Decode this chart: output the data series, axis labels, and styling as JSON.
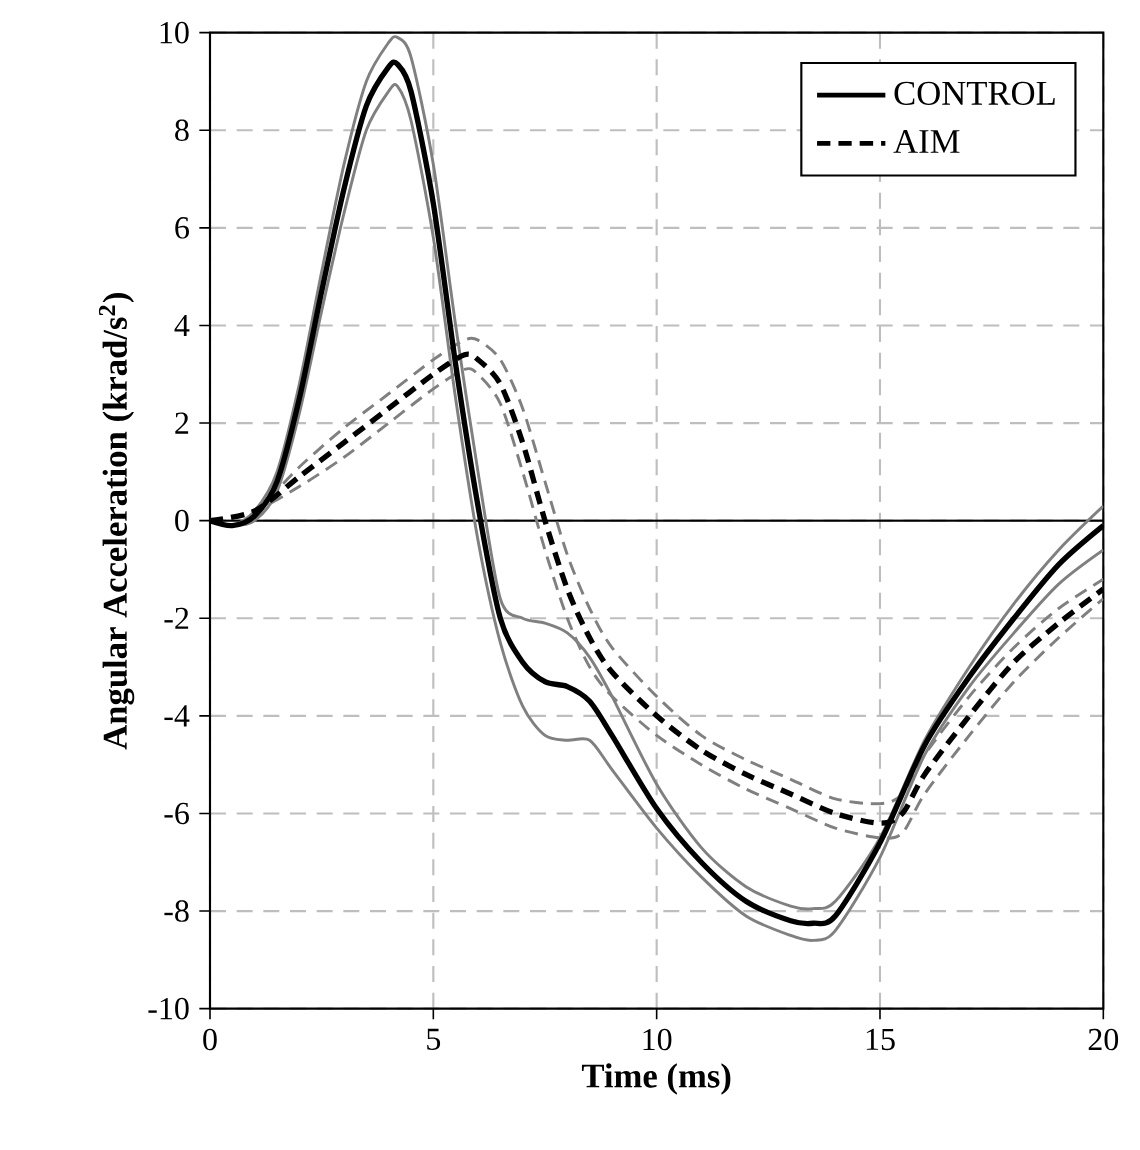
{
  "chart_data": {
    "type": "line",
    "xlabel": "Time (ms)",
    "ylabel": "Angular Acceleration (krad/s$^{2}$)",
    "xlim": [
      0,
      20
    ],
    "ylim": [
      -10,
      10
    ],
    "xticks": [
      0,
      5,
      10,
      15,
      20
    ],
    "yticks": [
      -10,
      -8,
      -6,
      -4,
      -2,
      0,
      2,
      4,
      6,
      8,
      10
    ],
    "grid": true,
    "legend": "top right",
    "marker": "none",
    "ref_lines": [
      {
        "axis": "y",
        "value": 0,
        "color": "#000000",
        "line_style": "solid"
      }
    ],
    "series": [
      {
        "name": "CONTROL",
        "color": "#000000",
        "line_style": "solid",
        "x": [
          0,
          0.5,
          1,
          1.5,
          2,
          2.5,
          3,
          3.5,
          4,
          4.2,
          4.5,
          5,
          5.5,
          6,
          6.5,
          7,
          7.5,
          8,
          8.5,
          9,
          10,
          11,
          12,
          13,
          13.5,
          14,
          15,
          16,
          17,
          18,
          19,
          20
        ],
        "values": [
          0,
          -0.1,
          0.1,
          0.8,
          2.5,
          4.7,
          6.8,
          8.5,
          9.3,
          9.35,
          8.8,
          6.5,
          3.2,
          0.3,
          -2.0,
          -2.9,
          -3.3,
          -3.4,
          -3.7,
          -4.4,
          -5.9,
          -7.0,
          -7.8,
          -8.2,
          -8.25,
          -8.1,
          -6.6,
          -4.6,
          -3.2,
          -2.0,
          -0.9,
          -0.1
        ]
      },
      {
        "color": "#808080",
        "line_style": "solid",
        "x": [
          0,
          0.5,
          1,
          1.5,
          2,
          2.5,
          3,
          3.5,
          4,
          4.2,
          4.5,
          5,
          5.5,
          6,
          6.5,
          7,
          7.5,
          8,
          8.5,
          9,
          10,
          11,
          12,
          13,
          13.5,
          14,
          15,
          16,
          17,
          18,
          19,
          20
        ],
        "values": [
          0,
          -0.1,
          0.2,
          1.0,
          2.8,
          5.1,
          7.3,
          9.0,
          9.8,
          9.9,
          9.5,
          7.3,
          4.0,
          1.0,
          -1.6,
          -2.0,
          -2.1,
          -2.3,
          -2.8,
          -3.6,
          -5.4,
          -6.7,
          -7.5,
          -7.9,
          -7.95,
          -7.8,
          -6.5,
          -4.5,
          -3.0,
          -1.7,
          -0.6,
          0.3
        ]
      },
      {
        "color": "#808080",
        "line_style": "solid",
        "x": [
          0,
          0.5,
          1,
          1.5,
          2,
          2.5,
          3,
          3.5,
          4,
          4.2,
          4.5,
          5,
          5.5,
          6,
          6.5,
          7,
          7.5,
          8,
          8.5,
          9,
          10,
          11,
          12,
          13,
          13.5,
          14,
          15,
          16,
          17,
          18,
          19,
          20
        ],
        "values": [
          0,
          -0.1,
          0.0,
          0.6,
          2.2,
          4.3,
          6.3,
          8.0,
          8.8,
          8.9,
          8.2,
          5.8,
          2.5,
          -0.4,
          -2.5,
          -3.8,
          -4.4,
          -4.5,
          -4.5,
          -5.1,
          -6.3,
          -7.3,
          -8.1,
          -8.5,
          -8.6,
          -8.4,
          -6.9,
          -4.8,
          -3.4,
          -2.3,
          -1.3,
          -0.6
        ]
      },
      {
        "name": "AIM",
        "color": "#000000",
        "line_style": "dashed",
        "x": [
          0,
          1,
          2,
          3,
          4,
          5,
          5.7,
          6,
          6.5,
          7,
          7.5,
          8,
          8.5,
          9,
          10,
          11,
          12,
          13,
          14,
          15,
          15.5,
          16,
          17,
          18,
          19,
          20
        ],
        "values": [
          0,
          0.2,
          0.9,
          1.6,
          2.3,
          3.0,
          3.4,
          3.3,
          2.8,
          1.6,
          0.0,
          -1.4,
          -2.4,
          -3.1,
          -4.0,
          -4.7,
          -5.2,
          -5.6,
          -6.0,
          -6.2,
          -6.0,
          -5.2,
          -4.0,
          -2.9,
          -2.1,
          -1.4
        ]
      },
      {
        "color": "#808080",
        "line_style": "dashed",
        "x": [
          0,
          1,
          2,
          3,
          4,
          5,
          5.7,
          6,
          6.5,
          7,
          7.5,
          8,
          8.5,
          9,
          10,
          11,
          12,
          13,
          14,
          15,
          15.5,
          16,
          17,
          18,
          19,
          20
        ],
        "values": [
          0,
          0.2,
          1.1,
          1.9,
          2.6,
          3.3,
          3.7,
          3.7,
          3.3,
          2.3,
          0.8,
          -0.7,
          -1.8,
          -2.6,
          -3.6,
          -4.4,
          -4.9,
          -5.3,
          -5.7,
          -5.8,
          -5.6,
          -4.8,
          -3.6,
          -2.6,
          -1.8,
          -1.2
        ]
      },
      {
        "color": "#808080",
        "line_style": "dashed",
        "x": [
          0,
          1,
          2,
          3,
          4,
          5,
          5.7,
          6,
          6.5,
          7,
          7.5,
          8,
          8.5,
          9,
          10,
          11,
          12,
          13,
          14,
          15,
          15.5,
          16,
          17,
          18,
          19,
          20
        ],
        "values": [
          0,
          0.2,
          0.7,
          1.3,
          2.0,
          2.7,
          3.1,
          3.0,
          2.4,
          1.0,
          -0.6,
          -2.0,
          -3.0,
          -3.6,
          -4.4,
          -5.0,
          -5.5,
          -5.9,
          -6.3,
          -6.5,
          -6.4,
          -5.6,
          -4.4,
          -3.3,
          -2.4,
          -1.6
        ]
      }
    ]
  }
}
